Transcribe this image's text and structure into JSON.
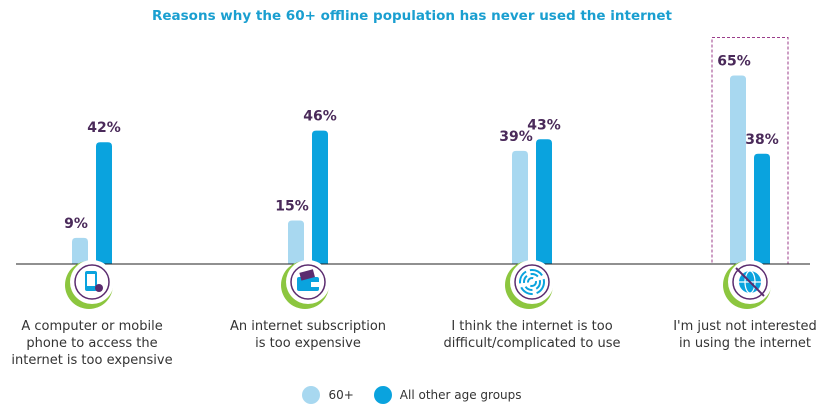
{
  "chart_data": {
    "type": "bar",
    "title": "Reasons why the 60+ offline population has never used the internet",
    "categories": [
      "A computer or mobile\nphone to access the\ninternet is too expensive",
      "An internet subscription\nis too expensive",
      "I think the internet is too\ndifficult/complicated to use",
      "I'm just not interested\nin using the internet"
    ],
    "series": [
      {
        "name": "60+",
        "values": [
          9,
          15,
          39,
          65
        ],
        "labels": [
          "9%",
          "15%",
          "39%",
          "65%"
        ],
        "color": "#a8d8f0"
      },
      {
        "name": "All other age groups",
        "values": [
          42,
          46,
          43,
          38
        ],
        "labels": [
          "42%",
          "46%",
          "43%",
          "38%"
        ],
        "color": "#0aa3de"
      }
    ],
    "highlight_category": 3,
    "icons": [
      "mobile-phone-icon",
      "wallet-card-icon",
      "maze-icon",
      "crossed-globe-icon"
    ],
    "accent_color": "#1a9fd0",
    "value_label_color": "#4a2a5a",
    "ring_color": "#8cc63f",
    "ylim": [
      0,
      70
    ],
    "grid": false,
    "legend_position": "bottom"
  }
}
